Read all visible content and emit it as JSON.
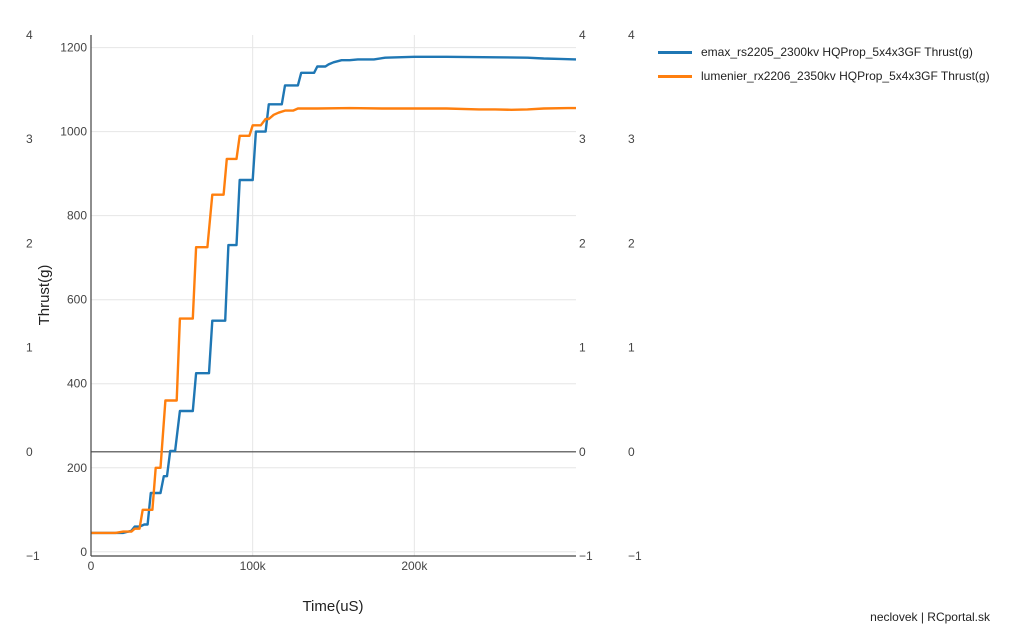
{
  "chart_data": {
    "type": "line",
    "xlabel": "Time(uS)",
    "ylabel": "Thrust(g)",
    "xlim": [
      0,
      300000
    ],
    "ylim": [
      -10,
      1230
    ],
    "grid": true,
    "x_ticks": [
      {
        "v": 0,
        "label": "0"
      },
      {
        "v": 100000,
        "label": "100k"
      },
      {
        "v": 200000,
        "label": "200k"
      }
    ],
    "y_ticks": [
      {
        "v": 0,
        "label": "0"
      },
      {
        "v": 200,
        "label": "200"
      },
      {
        "v": 400,
        "label": "400"
      },
      {
        "v": 600,
        "label": "600"
      },
      {
        "v": 800,
        "label": "800"
      },
      {
        "v": 1000,
        "label": "1000"
      },
      {
        "v": 1200,
        "label": "1200"
      }
    ],
    "secondary_axis_ticks": [
      {
        "v": -1,
        "label": "−1"
      },
      {
        "v": 0,
        "label": "0"
      },
      {
        "v": 1,
        "label": "1"
      },
      {
        "v": 2,
        "label": "2"
      },
      {
        "v": 3,
        "label": "3"
      },
      {
        "v": 4,
        "label": "4"
      }
    ],
    "secondary_axis_range": [
      -1,
      4
    ],
    "zero_line_value": 1.0,
    "series": [
      {
        "name": "emax_rs2205_2300kv HQProp_5x4x3GF Thrust(g)",
        "color": "#1f77b4",
        "points": [
          [
            0,
            45
          ],
          [
            15000,
            45
          ],
          [
            20000,
            45
          ],
          [
            25000,
            50
          ],
          [
            27000,
            60
          ],
          [
            30000,
            60
          ],
          [
            33000,
            65
          ],
          [
            35000,
            65
          ],
          [
            37000,
            140
          ],
          [
            41000,
            140
          ],
          [
            43000,
            140
          ],
          [
            45000,
            180
          ],
          [
            47000,
            180
          ],
          [
            49000,
            240
          ],
          [
            52000,
            240
          ],
          [
            55000,
            335
          ],
          [
            60000,
            335
          ],
          [
            63000,
            335
          ],
          [
            65000,
            425
          ],
          [
            70000,
            425
          ],
          [
            73000,
            425
          ],
          [
            75000,
            550
          ],
          [
            80000,
            550
          ],
          [
            83000,
            550
          ],
          [
            85000,
            730
          ],
          [
            89000,
            730
          ],
          [
            90000,
            730
          ],
          [
            92000,
            885
          ],
          [
            97000,
            885
          ],
          [
            100000,
            885
          ],
          [
            102000,
            1000
          ],
          [
            106000,
            1000
          ],
          [
            108000,
            1000
          ],
          [
            110000,
            1065
          ],
          [
            115000,
            1065
          ],
          [
            118000,
            1065
          ],
          [
            120000,
            1110
          ],
          [
            125000,
            1110
          ],
          [
            128000,
            1110
          ],
          [
            130000,
            1140
          ],
          [
            135000,
            1140
          ],
          [
            138000,
            1140
          ],
          [
            140000,
            1155
          ],
          [
            145000,
            1155
          ],
          [
            147000,
            1160
          ],
          [
            150000,
            1165
          ],
          [
            155000,
            1170
          ],
          [
            160000,
            1170
          ],
          [
            165000,
            1172
          ],
          [
            175000,
            1172
          ],
          [
            182000,
            1176
          ],
          [
            200000,
            1178
          ],
          [
            220000,
            1178
          ],
          [
            250000,
            1177
          ],
          [
            270000,
            1176
          ],
          [
            280000,
            1174
          ],
          [
            290000,
            1173
          ],
          [
            300000,
            1172
          ]
        ]
      },
      {
        "name": "lumenier_rx2206_2350kv HQProp_5x4x3GF Thrust(g)",
        "color": "#ff7f0e",
        "points": [
          [
            0,
            45
          ],
          [
            15000,
            45
          ],
          [
            20000,
            48
          ],
          [
            25000,
            48
          ],
          [
            27000,
            55
          ],
          [
            30000,
            55
          ],
          [
            32000,
            100
          ],
          [
            35000,
            100
          ],
          [
            38000,
            100
          ],
          [
            40000,
            200
          ],
          [
            43000,
            200
          ],
          [
            46000,
            360
          ],
          [
            50000,
            360
          ],
          [
            53000,
            360
          ],
          [
            55000,
            555
          ],
          [
            60000,
            555
          ],
          [
            63000,
            555
          ],
          [
            65000,
            725
          ],
          [
            70000,
            725
          ],
          [
            72000,
            725
          ],
          [
            75000,
            850
          ],
          [
            80000,
            850
          ],
          [
            82000,
            850
          ],
          [
            84000,
            935
          ],
          [
            89000,
            935
          ],
          [
            90000,
            935
          ],
          [
            92000,
            990
          ],
          [
            96000,
            990
          ],
          [
            98000,
            990
          ],
          [
            100000,
            1015
          ],
          [
            103000,
            1015
          ],
          [
            105000,
            1015
          ],
          [
            108000,
            1030
          ],
          [
            110000,
            1030
          ],
          [
            113000,
            1040
          ],
          [
            116000,
            1045
          ],
          [
            120000,
            1050
          ],
          [
            125000,
            1050
          ],
          [
            128000,
            1055
          ],
          [
            135000,
            1055
          ],
          [
            140000,
            1055
          ],
          [
            160000,
            1056
          ],
          [
            180000,
            1055
          ],
          [
            200000,
            1055
          ],
          [
            220000,
            1055
          ],
          [
            240000,
            1053
          ],
          [
            250000,
            1053
          ],
          [
            260000,
            1052
          ],
          [
            270000,
            1053
          ],
          [
            280000,
            1055
          ],
          [
            295000,
            1056
          ],
          [
            300000,
            1056
          ]
        ]
      }
    ]
  },
  "credit": "neclovek | RCportal.sk"
}
